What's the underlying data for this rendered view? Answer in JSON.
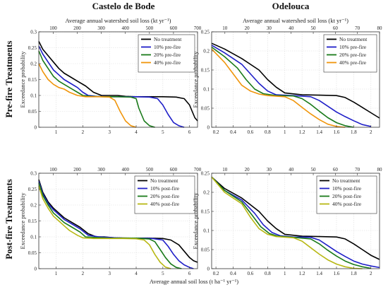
{
  "figure": {
    "column_titles": [
      "Castelo de Bode",
      "Odelouca"
    ],
    "row_titles": [
      "Pre-fire Treatments",
      "Post-fire Treatments"
    ]
  },
  "chart_data": [
    {
      "id": "castelo-prefire",
      "type": "line",
      "xlabel": "",
      "ylabel": "Exceedance probability",
      "top_xlabel": "Average annual watershed soil loss (kt yr⁻¹)",
      "xlim": [
        0.35,
        6.3
      ],
      "ylim": [
        0,
        0.3
      ],
      "xticks": [
        "1",
        "2",
        "3",
        "4",
        "5",
        "6"
      ],
      "xtick_values": [
        1,
        2,
        3,
        4,
        5,
        6
      ],
      "yticks": [
        "0",
        "0.05",
        "0.1",
        "0.15",
        "0.2",
        "0.25",
        "0.3"
      ],
      "ytick_values": [
        0,
        0.05,
        0.1,
        0.15,
        0.2,
        0.25,
        0.3
      ],
      "top_xticks": [
        "100",
        "200",
        "300",
        "400",
        "500",
        "600",
        "700"
      ],
      "top_xtick_values": [
        100,
        200,
        300,
        400,
        500,
        600,
        700
      ],
      "top_xlim": [
        40,
        700
      ],
      "grid": true,
      "legend_position": "top-right",
      "series": [
        {
          "name": "No treatment",
          "color": "#000000",
          "x": [
            0.35,
            0.5,
            0.7,
            0.9,
            1.1,
            1.3,
            1.5,
            1.8,
            2.1,
            2.4,
            2.7,
            3.0,
            3.3,
            3.6,
            4.0,
            4.5,
            5.0,
            5.5,
            5.8,
            6.0,
            6.1,
            6.2,
            6.3
          ],
          "y": [
            0.27,
            0.245,
            0.225,
            0.205,
            0.185,
            0.17,
            0.16,
            0.145,
            0.13,
            0.11,
            0.1,
            0.1,
            0.1,
            0.097,
            0.096,
            0.096,
            0.096,
            0.095,
            0.09,
            0.07,
            0.05,
            0.03,
            0.02
          ]
        },
        {
          "name": "10% pre-fire",
          "color": "#1f1fc8",
          "x": [
            0.35,
            0.5,
            0.7,
            0.9,
            1.1,
            1.3,
            1.5,
            1.8,
            2.0,
            2.2,
            2.5,
            3.0,
            3.5,
            4.0,
            4.5,
            4.8,
            5.0,
            5.2,
            5.4,
            5.6,
            5.8
          ],
          "y": [
            0.255,
            0.23,
            0.205,
            0.18,
            0.165,
            0.15,
            0.14,
            0.125,
            0.11,
            0.1,
            0.097,
            0.096,
            0.096,
            0.096,
            0.095,
            0.09,
            0.07,
            0.04,
            0.015,
            0.005,
            0.0
          ]
        },
        {
          "name": "20% pre-fire",
          "color": "#1a7a1a",
          "x": [
            0.35,
            0.5,
            0.7,
            0.9,
            1.1,
            1.3,
            1.5,
            1.8,
            2.0,
            2.3,
            2.8,
            3.3,
            3.8,
            4.0,
            4.1,
            4.3,
            4.5,
            4.7
          ],
          "y": [
            0.24,
            0.21,
            0.185,
            0.16,
            0.145,
            0.135,
            0.125,
            0.11,
            0.1,
            0.097,
            0.096,
            0.096,
            0.095,
            0.09,
            0.06,
            0.02,
            0.005,
            0.0
          ]
        },
        {
          "name": "40% pre-fire",
          "color": "#f0950a",
          "x": [
            0.35,
            0.5,
            0.7,
            0.9,
            1.1,
            1.3,
            1.5,
            1.8,
            2.1,
            2.6,
            3.0,
            3.2,
            3.4,
            3.6,
            3.8,
            4.0
          ],
          "y": [
            0.2,
            0.175,
            0.15,
            0.135,
            0.125,
            0.12,
            0.11,
            0.1,
            0.096,
            0.096,
            0.095,
            0.085,
            0.05,
            0.02,
            0.005,
            0.0
          ]
        }
      ]
    },
    {
      "id": "odelouca-prefire",
      "type": "line",
      "xlabel": "",
      "ylabel": "Exceedance probability",
      "top_xlabel": "Average annual watershed soil loss (kt yr⁻¹)",
      "xlim": [
        0.15,
        2.1
      ],
      "ylim": [
        0,
        0.25
      ],
      "xticks": [
        "0.2",
        "0.4",
        "0.6",
        "0.8",
        "1",
        "1.2",
        "1.4",
        "1.6",
        "1.8",
        "2"
      ],
      "xtick_values": [
        0.2,
        0.4,
        0.6,
        0.8,
        1.0,
        1.2,
        1.4,
        1.6,
        1.8,
        2.0
      ],
      "yticks": [
        "0",
        "0.05",
        "0.1",
        "0.15",
        "0.2",
        "0.25"
      ],
      "ytick_values": [
        0,
        0.05,
        0.1,
        0.15,
        0.2,
        0.25
      ],
      "top_xticks": [
        "10",
        "20",
        "30",
        "40",
        "50",
        "60",
        "70",
        "80"
      ],
      "top_xtick_values": [
        10,
        20,
        30,
        40,
        50,
        60,
        70,
        80
      ],
      "top_xlim": [
        4,
        80
      ],
      "grid": true,
      "legend_position": "top-right",
      "series": [
        {
          "name": "No treatment",
          "color": "#000000",
          "x": [
            0.15,
            0.3,
            0.5,
            0.7,
            0.8,
            0.9,
            1.0,
            1.2,
            1.4,
            1.6,
            1.7,
            1.8,
            1.9,
            2.0,
            2.1
          ],
          "y": [
            0.22,
            0.205,
            0.18,
            0.15,
            0.125,
            0.105,
            0.09,
            0.085,
            0.084,
            0.083,
            0.078,
            0.066,
            0.052,
            0.038,
            0.024
          ]
        },
        {
          "name": "10% pre-fire",
          "color": "#1f1fc8",
          "x": [
            0.15,
            0.3,
            0.5,
            0.6,
            0.7,
            0.8,
            0.9,
            1.1,
            1.3,
            1.4,
            1.5,
            1.6,
            1.7,
            1.8,
            1.9,
            2.0
          ],
          "y": [
            0.215,
            0.195,
            0.165,
            0.14,
            0.115,
            0.095,
            0.085,
            0.083,
            0.08,
            0.07,
            0.055,
            0.04,
            0.028,
            0.017,
            0.007,
            0.002
          ]
        },
        {
          "name": "20% pre-fire",
          "color": "#1a7a1a",
          "x": [
            0.15,
            0.3,
            0.45,
            0.55,
            0.65,
            0.75,
            0.9,
            1.1,
            1.2,
            1.3,
            1.4,
            1.5,
            1.6,
            1.7,
            1.8
          ],
          "y": [
            0.21,
            0.185,
            0.155,
            0.125,
            0.1,
            0.088,
            0.083,
            0.082,
            0.075,
            0.06,
            0.042,
            0.025,
            0.012,
            0.004,
            0.0
          ]
        },
        {
          "name": "40% pre-fire",
          "color": "#f0950a",
          "x": [
            0.15,
            0.3,
            0.4,
            0.5,
            0.6,
            0.7,
            0.8,
            1.0,
            1.1,
            1.2,
            1.3,
            1.4,
            1.5,
            1.6,
            1.7
          ],
          "y": [
            0.205,
            0.17,
            0.14,
            0.11,
            0.095,
            0.087,
            0.083,
            0.08,
            0.07,
            0.052,
            0.035,
            0.02,
            0.008,
            0.002,
            0.0
          ]
        }
      ]
    },
    {
      "id": "castelo-postfire",
      "type": "line",
      "xlabel": "",
      "ylabel": "Exceedance probability",
      "top_xlabel": "",
      "xlim": [
        0.35,
        6.3
      ],
      "ylim": [
        0,
        0.3
      ],
      "xticks": [
        "1",
        "2",
        "3",
        "4",
        "5",
        "6"
      ],
      "xtick_values": [
        1,
        2,
        3,
        4,
        5,
        6
      ],
      "yticks": [
        "0",
        "0.05",
        "0.1",
        "0.15",
        "0.2",
        "0.25",
        "0.3"
      ],
      "ytick_values": [
        0,
        0.05,
        0.1,
        0.15,
        0.2,
        0.25,
        0.3
      ],
      "top_xticks": [
        "100",
        "200",
        "300",
        "400",
        "500",
        "600",
        "700"
      ],
      "top_xtick_values": [
        100,
        200,
        300,
        400,
        500,
        600,
        700
      ],
      "top_xlim": [
        40,
        700
      ],
      "grid": true,
      "legend_position": "top-right",
      "series": [
        {
          "name": "No treatment",
          "color": "#000000",
          "x": [
            0.35,
            0.5,
            0.7,
            0.9,
            1.1,
            1.3,
            1.6,
            1.9,
            2.2,
            2.5,
            2.8,
            3.2,
            3.8,
            4.4,
            5.0,
            5.3,
            5.6,
            5.8,
            6.0,
            6.15,
            6.3
          ],
          "y": [
            0.28,
            0.24,
            0.21,
            0.19,
            0.175,
            0.16,
            0.145,
            0.13,
            0.11,
            0.1,
            0.1,
            0.097,
            0.096,
            0.096,
            0.095,
            0.09,
            0.075,
            0.055,
            0.035,
            0.025,
            0.02
          ]
        },
        {
          "name": "10% post-fire",
          "color": "#1f1fc8",
          "x": [
            0.35,
            0.5,
            0.7,
            0.9,
            1.1,
            1.3,
            1.6,
            1.9,
            2.2,
            2.6,
            3.0,
            3.5,
            4.0,
            4.6,
            5.0,
            5.2,
            5.4,
            5.6,
            5.8,
            6.0,
            6.15
          ],
          "y": [
            0.275,
            0.235,
            0.205,
            0.185,
            0.17,
            0.155,
            0.14,
            0.125,
            0.105,
            0.1,
            0.098,
            0.096,
            0.096,
            0.095,
            0.09,
            0.07,
            0.045,
            0.025,
            0.012,
            0.004,
            0.0
          ]
        },
        {
          "name": "20% post-fire",
          "color": "#1a7a1a",
          "x": [
            0.35,
            0.5,
            0.7,
            0.9,
            1.1,
            1.3,
            1.6,
            1.9,
            2.1,
            2.5,
            3.0,
            3.5,
            4.0,
            4.5,
            4.7,
            4.9,
            5.1,
            5.3,
            5.5,
            5.7
          ],
          "y": [
            0.27,
            0.23,
            0.2,
            0.175,
            0.16,
            0.145,
            0.13,
            0.115,
            0.1,
            0.098,
            0.096,
            0.096,
            0.096,
            0.093,
            0.085,
            0.06,
            0.035,
            0.015,
            0.004,
            0.0
          ]
        },
        {
          "name": "40% post-fire",
          "color": "#b8b814",
          "x": [
            0.35,
            0.5,
            0.7,
            0.9,
            1.1,
            1.3,
            1.5,
            1.8,
            2.0,
            2.4,
            3.0,
            3.5,
            4.0,
            4.3,
            4.5,
            4.7,
            4.9,
            5.1,
            5.3
          ],
          "y": [
            0.26,
            0.22,
            0.19,
            0.165,
            0.15,
            0.135,
            0.12,
            0.105,
            0.097,
            0.095,
            0.095,
            0.095,
            0.094,
            0.09,
            0.075,
            0.045,
            0.02,
            0.005,
            0.0
          ]
        }
      ]
    },
    {
      "id": "odelouca-postfire",
      "type": "line",
      "xlabel": "Average annual soil loss (t ha⁻¹ yr⁻¹)",
      "ylabel": "Exceedance probability",
      "top_xlabel": "",
      "xlim": [
        0.15,
        2.1
      ],
      "ylim": [
        0,
        0.25
      ],
      "xticks": [
        "0.2",
        "0.4",
        "0.6",
        "0.8",
        "1",
        "1.2",
        "1.4",
        "1.6",
        "1.8",
        "2"
      ],
      "xtick_values": [
        0.2,
        0.4,
        0.6,
        0.8,
        1.0,
        1.2,
        1.4,
        1.6,
        1.8,
        2.0
      ],
      "yticks": [
        "0",
        "0.05",
        "0.1",
        "0.15",
        "0.2",
        "0.25"
      ],
      "ytick_values": [
        0,
        0.05,
        0.1,
        0.15,
        0.2,
        0.25
      ],
      "top_xticks": [
        "10",
        "20",
        "30",
        "40",
        "50",
        "60",
        "70",
        "80"
      ],
      "top_xtick_values": [
        10,
        20,
        30,
        40,
        50,
        60,
        70,
        80
      ],
      "top_xlim": [
        4,
        80
      ],
      "grid": true,
      "legend_position": "top-right",
      "series": [
        {
          "name": "No treatment",
          "color": "#000000",
          "x": [
            0.15,
            0.3,
            0.5,
            0.7,
            0.8,
            0.9,
            1.0,
            1.2,
            1.4,
            1.6,
            1.7,
            1.8,
            1.9,
            2.0,
            2.1
          ],
          "y": [
            0.24,
            0.21,
            0.185,
            0.15,
            0.125,
            0.105,
            0.09,
            0.085,
            0.084,
            0.083,
            0.078,
            0.065,
            0.05,
            0.035,
            0.024
          ]
        },
        {
          "name": "10% post-fire",
          "color": "#1f1fc8",
          "x": [
            0.15,
            0.3,
            0.5,
            0.65,
            0.75,
            0.85,
            0.95,
            1.1,
            1.3,
            1.4,
            1.5,
            1.6,
            1.7,
            1.8,
            1.9,
            2.0,
            2.1
          ],
          "y": [
            0.24,
            0.205,
            0.18,
            0.145,
            0.115,
            0.095,
            0.086,
            0.083,
            0.082,
            0.075,
            0.06,
            0.045,
            0.032,
            0.02,
            0.012,
            0.007,
            0.003
          ]
        },
        {
          "name": "20% post-fire",
          "color": "#1a7a1a",
          "x": [
            0.15,
            0.3,
            0.5,
            0.62,
            0.72,
            0.82,
            0.92,
            1.1,
            1.3,
            1.4,
            1.5,
            1.6,
            1.7,
            1.8,
            1.9,
            2.0
          ],
          "y": [
            0.24,
            0.205,
            0.175,
            0.14,
            0.11,
            0.092,
            0.085,
            0.082,
            0.078,
            0.065,
            0.048,
            0.033,
            0.02,
            0.011,
            0.005,
            0.001
          ]
        },
        {
          "name": "40% post-fire",
          "color": "#b8b814",
          "x": [
            0.15,
            0.3,
            0.5,
            0.6,
            0.7,
            0.8,
            0.9,
            1.1,
            1.2,
            1.3,
            1.4,
            1.5,
            1.6,
            1.7,
            1.8,
            1.9
          ],
          "y": [
            0.24,
            0.2,
            0.17,
            0.135,
            0.105,
            0.09,
            0.084,
            0.081,
            0.072,
            0.055,
            0.038,
            0.023,
            0.012,
            0.005,
            0.001,
            0.0
          ]
        }
      ]
    }
  ]
}
